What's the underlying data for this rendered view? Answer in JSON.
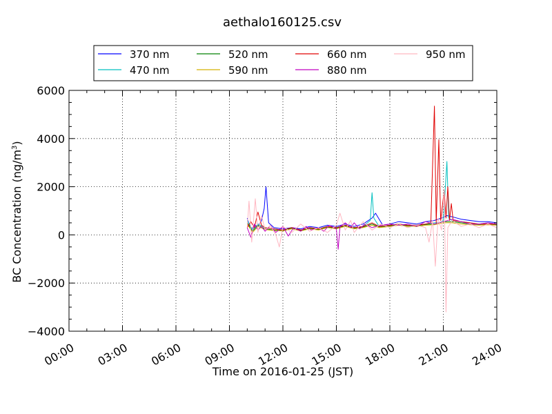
{
  "chart_data": {
    "type": "line",
    "title": "aethalo160125.csv",
    "xlabel": "Time on 2016-01-25 (JST)",
    "ylabel": "BC Concentration (ng/m3)",
    "ylabel_main": "BC Concentration (ng/m",
    "ylabel_sup": "3",
    "ylabel_close": ")",
    "xlim_hours": [
      0,
      24
    ],
    "ylim": [
      -4000,
      6000
    ],
    "x_ticks": [
      {
        "hour": 0,
        "label": "00:00"
      },
      {
        "hour": 3,
        "label": "03:00"
      },
      {
        "hour": 6,
        "label": "06:00"
      },
      {
        "hour": 9,
        "label": "09:00"
      },
      {
        "hour": 12,
        "label": "12:00"
      },
      {
        "hour": 15,
        "label": "15:00"
      },
      {
        "hour": 18,
        "label": "18:00"
      },
      {
        "hour": 21,
        "label": "21:00"
      },
      {
        "hour": 24,
        "label": "24:00"
      }
    ],
    "y_ticks": [
      {
        "value": -4000,
        "label": "−4000"
      },
      {
        "value": -2000,
        "label": "−2000"
      },
      {
        "value": 0,
        "label": "0"
      },
      {
        "value": 2000,
        "label": "2000"
      },
      {
        "value": 4000,
        "label": "4000"
      },
      {
        "value": 6000,
        "label": "6000"
      }
    ],
    "grid": true,
    "legend_position": "top",
    "series": [
      {
        "name": "370 nm",
        "color": "#0000ff",
        "points": [
          [
            10.0,
            700
          ],
          [
            10.2,
            200
          ],
          [
            10.4,
            400
          ],
          [
            10.6,
            350
          ],
          [
            10.8,
            600
          ],
          [
            10.95,
            1100
          ],
          [
            11.05,
            2000
          ],
          [
            11.2,
            500
          ],
          [
            11.5,
            300
          ],
          [
            12.0,
            250
          ],
          [
            12.5,
            300
          ],
          [
            13.0,
            250
          ],
          [
            13.5,
            350
          ],
          [
            14.0,
            300
          ],
          [
            14.5,
            400
          ],
          [
            15.0,
            350
          ],
          [
            15.5,
            450
          ],
          [
            16.0,
            350
          ],
          [
            16.5,
            450
          ],
          [
            17.0,
            700
          ],
          [
            17.2,
            900
          ],
          [
            17.4,
            650
          ],
          [
            17.6,
            400
          ],
          [
            18.0,
            450
          ],
          [
            18.5,
            550
          ],
          [
            19.0,
            500
          ],
          [
            19.5,
            450
          ],
          [
            20.0,
            550
          ],
          [
            20.5,
            600
          ],
          [
            20.9,
            700
          ],
          [
            21.2,
            800
          ],
          [
            21.5,
            750
          ],
          [
            22.0,
            650
          ],
          [
            22.5,
            600
          ],
          [
            23.0,
            550
          ],
          [
            23.5,
            550
          ],
          [
            24.0,
            500
          ]
        ]
      },
      {
        "name": "470 nm",
        "color": "#00bfbf",
        "points": [
          [
            10.0,
            600
          ],
          [
            10.3,
            200
          ],
          [
            10.6,
            450
          ],
          [
            11.0,
            300
          ],
          [
            11.5,
            250
          ],
          [
            12.0,
            200
          ],
          [
            12.5,
            300
          ],
          [
            13.0,
            200
          ],
          [
            13.5,
            300
          ],
          [
            14.0,
            250
          ],
          [
            14.5,
            350
          ],
          [
            15.0,
            300
          ],
          [
            15.5,
            400
          ],
          [
            16.0,
            300
          ],
          [
            16.5,
            350
          ],
          [
            16.9,
            600
          ],
          [
            17.0,
            1750
          ],
          [
            17.1,
            700
          ],
          [
            17.4,
            350
          ],
          [
            18.0,
            400
          ],
          [
            18.5,
            450
          ],
          [
            19.0,
            400
          ],
          [
            19.5,
            400
          ],
          [
            20.0,
            450
          ],
          [
            20.5,
            500
          ],
          [
            20.8,
            500
          ],
          [
            21.0,
            600
          ],
          [
            21.2,
            3050
          ],
          [
            21.3,
            700
          ],
          [
            21.5,
            600
          ],
          [
            22.0,
            550
          ],
          [
            22.5,
            500
          ],
          [
            23.0,
            450
          ],
          [
            23.5,
            500
          ],
          [
            24.0,
            450
          ]
        ]
      },
      {
        "name": "520 nm",
        "color": "#008000",
        "points": [
          [
            10.0,
            500
          ],
          [
            10.3,
            150
          ],
          [
            10.6,
            400
          ],
          [
            11.0,
            250
          ],
          [
            11.5,
            200
          ],
          [
            12.0,
            180
          ],
          [
            12.5,
            280
          ],
          [
            13.0,
            180
          ],
          [
            13.5,
            280
          ],
          [
            14.0,
            220
          ],
          [
            14.5,
            320
          ],
          [
            15.0,
            280
          ],
          [
            15.5,
            380
          ],
          [
            16.0,
            280
          ],
          [
            16.5,
            330
          ],
          [
            17.0,
            450
          ],
          [
            17.4,
            330
          ],
          [
            18.0,
            380
          ],
          [
            18.5,
            420
          ],
          [
            19.0,
            380
          ],
          [
            19.5,
            380
          ],
          [
            20.0,
            430
          ],
          [
            20.5,
            450
          ],
          [
            21.0,
            550
          ],
          [
            21.5,
            550
          ],
          [
            22.0,
            500
          ],
          [
            22.5,
            450
          ],
          [
            23.0,
            430
          ],
          [
            23.5,
            450
          ],
          [
            24.0,
            420
          ]
        ]
      },
      {
        "name": "590 nm",
        "color": "#d4b000",
        "points": [
          [
            10.0,
            450
          ],
          [
            10.3,
            100
          ],
          [
            10.6,
            350
          ],
          [
            11.0,
            220
          ],
          [
            11.5,
            180
          ],
          [
            12.0,
            160
          ],
          [
            12.5,
            250
          ],
          [
            13.0,
            160
          ],
          [
            13.5,
            250
          ],
          [
            14.0,
            200
          ],
          [
            14.5,
            300
          ],
          [
            15.0,
            250
          ],
          [
            15.5,
            350
          ],
          [
            16.0,
            250
          ],
          [
            16.5,
            300
          ],
          [
            17.0,
            400
          ],
          [
            17.4,
            300
          ],
          [
            18.0,
            350
          ],
          [
            18.5,
            400
          ],
          [
            19.0,
            350
          ],
          [
            19.5,
            350
          ],
          [
            20.0,
            400
          ],
          [
            20.5,
            420
          ],
          [
            21.0,
            500
          ],
          [
            21.5,
            500
          ],
          [
            22.0,
            450
          ],
          [
            22.5,
            420
          ],
          [
            23.0,
            400
          ],
          [
            23.5,
            420
          ],
          [
            24.0,
            400
          ]
        ]
      },
      {
        "name": "660 nm",
        "color": "#e00000",
        "points": [
          [
            10.0,
            300
          ],
          [
            10.2,
            550
          ],
          [
            10.4,
            300
          ],
          [
            10.6,
            950
          ],
          [
            10.8,
            400
          ],
          [
            11.0,
            300
          ],
          [
            11.5,
            250
          ],
          [
            12.0,
            200
          ],
          [
            12.5,
            300
          ],
          [
            13.0,
            200
          ],
          [
            13.5,
            300
          ],
          [
            14.0,
            250
          ],
          [
            14.5,
            350
          ],
          [
            15.0,
            300
          ],
          [
            15.5,
            400
          ],
          [
            16.0,
            300
          ],
          [
            16.5,
            350
          ],
          [
            17.0,
            500
          ],
          [
            17.4,
            350
          ],
          [
            18.0,
            400
          ],
          [
            18.5,
            450
          ],
          [
            19.0,
            400
          ],
          [
            19.5,
            400
          ],
          [
            20.0,
            450
          ],
          [
            20.3,
            500
          ],
          [
            20.5,
            5350
          ],
          [
            20.6,
            500
          ],
          [
            20.75,
            3950
          ],
          [
            20.85,
            600
          ],
          [
            21.05,
            1850
          ],
          [
            21.15,
            700
          ],
          [
            21.25,
            2000
          ],
          [
            21.35,
            600
          ],
          [
            21.45,
            1300
          ],
          [
            21.55,
            600
          ],
          [
            22.0,
            550
          ],
          [
            22.5,
            500
          ],
          [
            23.0,
            450
          ],
          [
            23.5,
            450
          ],
          [
            24.0,
            450
          ]
        ]
      },
      {
        "name": "880 nm",
        "color": "#c000c0",
        "points": [
          [
            10.0,
            300
          ],
          [
            10.2,
            -100
          ],
          [
            10.4,
            450
          ],
          [
            10.6,
            200
          ],
          [
            10.8,
            350
          ],
          [
            11.0,
            150
          ],
          [
            11.3,
            400
          ],
          [
            11.6,
            100
          ],
          [
            12.0,
            350
          ],
          [
            12.3,
            -50
          ],
          [
            12.6,
            300
          ],
          [
            13.0,
            150
          ],
          [
            13.3,
            350
          ],
          [
            13.6,
            200
          ],
          [
            14.0,
            300
          ],
          [
            14.3,
            150
          ],
          [
            14.6,
            400
          ],
          [
            15.0,
            250
          ],
          [
            15.1,
            -600
          ],
          [
            15.2,
            350
          ],
          [
            15.5,
            500
          ],
          [
            15.8,
            300
          ],
          [
            16.0,
            500
          ],
          [
            16.3,
            250
          ],
          [
            16.6,
            450
          ],
          [
            17.0,
            300
          ],
          [
            17.5,
            400
          ],
          [
            18.0,
            450
          ],
          [
            18.5,
            400
          ],
          [
            19.0,
            450
          ],
          [
            19.5,
            350
          ],
          [
            20.0,
            550
          ],
          [
            20.5,
            450
          ],
          [
            21.0,
            550
          ],
          [
            21.5,
            650
          ],
          [
            22.0,
            550
          ],
          [
            22.5,
            450
          ],
          [
            23.0,
            450
          ],
          [
            23.5,
            500
          ],
          [
            24.0,
            450
          ]
        ]
      },
      {
        "name": "950 nm",
        "color": "#ffb6c1",
        "points": [
          [
            10.0,
            300
          ],
          [
            10.1,
            1400
          ],
          [
            10.25,
            -300
          ],
          [
            10.45,
            1500
          ],
          [
            10.6,
            100
          ],
          [
            10.8,
            800
          ],
          [
            11.0,
            200
          ],
          [
            11.3,
            400
          ],
          [
            11.6,
            0
          ],
          [
            11.8,
            -500
          ],
          [
            12.0,
            350
          ],
          [
            12.5,
            100
          ],
          [
            13.0,
            450
          ],
          [
            13.5,
            150
          ],
          [
            14.0,
            300
          ],
          [
            14.5,
            100
          ],
          [
            15.0,
            400
          ],
          [
            15.2,
            900
          ],
          [
            15.5,
            200
          ],
          [
            15.8,
            600
          ],
          [
            16.0,
            100
          ],
          [
            16.5,
            550
          ],
          [
            17.0,
            200
          ],
          [
            17.5,
            450
          ],
          [
            18.0,
            300
          ],
          [
            18.5,
            450
          ],
          [
            19.0,
            300
          ],
          [
            19.5,
            400
          ],
          [
            20.0,
            300
          ],
          [
            20.2,
            -300
          ],
          [
            20.4,
            600
          ],
          [
            20.55,
            -1300
          ],
          [
            20.7,
            700
          ],
          [
            20.9,
            200
          ],
          [
            21.05,
            1900
          ],
          [
            21.15,
            -3200
          ],
          [
            21.25,
            300
          ],
          [
            21.5,
            600
          ],
          [
            22.0,
            350
          ],
          [
            22.5,
            450
          ],
          [
            23.0,
            300
          ],
          [
            23.5,
            450
          ],
          [
            24.0,
            300
          ]
        ]
      }
    ]
  }
}
